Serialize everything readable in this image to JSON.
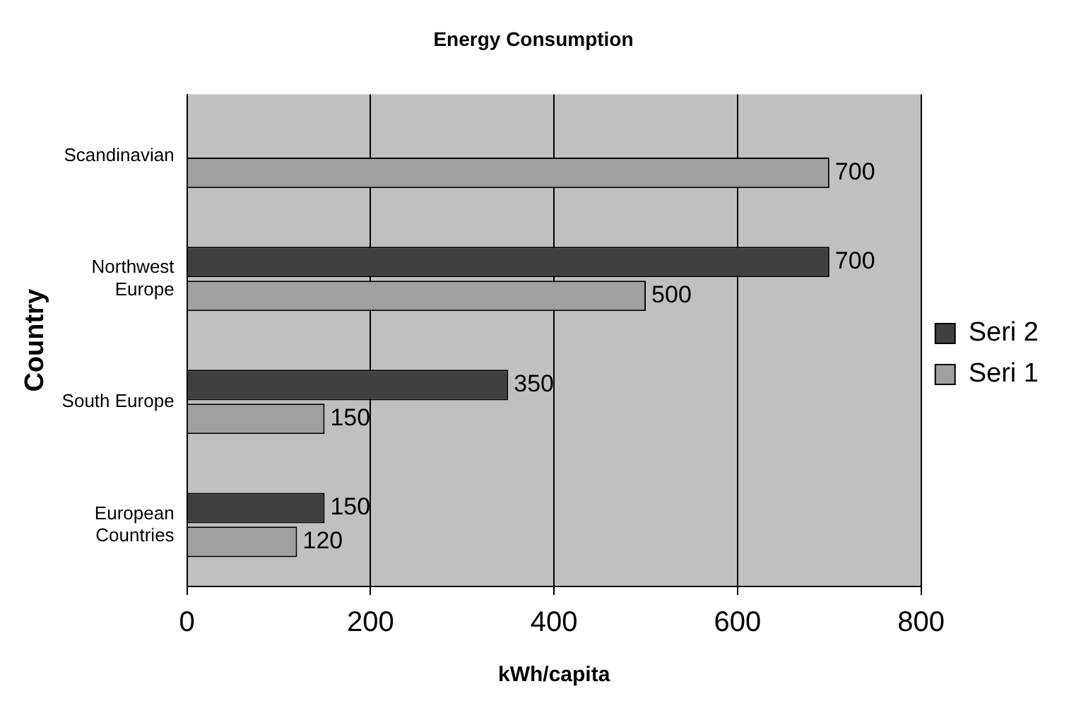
{
  "chart_data": {
    "type": "bar",
    "orientation": "horizontal",
    "title": "Energy Consumption",
    "xlabel": "kWh/capita",
    "ylabel": "Country",
    "categories": [
      "Scandinavian",
      "Northwest Europe",
      "South Europe",
      "European Countries"
    ],
    "series": [
      {
        "name": "Seri 2",
        "color": "#404040",
        "values": [
          null,
          700,
          350,
          150
        ]
      },
      {
        "name": "Seri 1",
        "color": "#a0a0a0",
        "values": [
          700,
          500,
          150,
          120
        ]
      }
    ],
    "xlim": [
      0,
      800
    ],
    "xticks": [
      0,
      200,
      400,
      600,
      800
    ],
    "grid": "x",
    "legend": "right",
    "data_labels": true
  }
}
